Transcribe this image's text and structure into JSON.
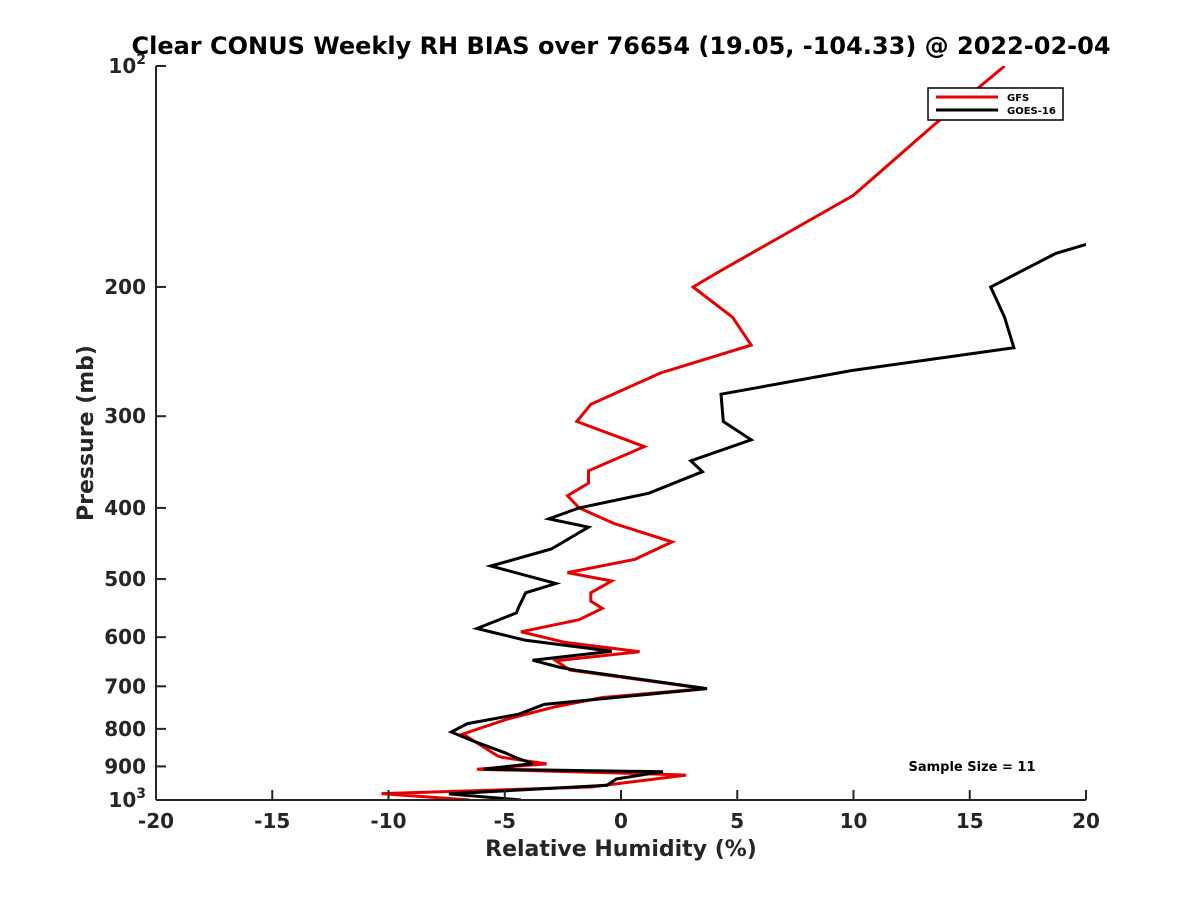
{
  "chart_data": {
    "type": "line",
    "title": "Clear CONUS Weekly RH BIAS over 76654 (19.05, -104.33) @ 2022-02-04",
    "xlabel": "Relative Humidity (%)",
    "ylabel": "Pressure (mb)",
    "xlim": [
      -20,
      20
    ],
    "ylim": [
      100,
      1000
    ],
    "y_scale": "log",
    "y_reversed": true,
    "grid": false,
    "legend_position": "top-right",
    "annotation": "Sample Size = 11",
    "x_ticks": [
      -20,
      -15,
      -10,
      -5,
      0,
      5,
      10,
      15,
      20
    ],
    "x_tick_labels": [
      "-20",
      "-15",
      "-10",
      "-5",
      "0",
      "5",
      "10",
      "15",
      "20"
    ],
    "y_ticks": [
      100,
      200,
      300,
      400,
      500,
      600,
      700,
      800,
      900,
      1000
    ],
    "y_tick_labels": [
      "10²",
      "200",
      "300",
      "400",
      "500",
      "600",
      "700",
      "800",
      "900",
      "10³"
    ],
    "series": [
      {
        "name": "GFS",
        "color": "#e60000",
        "points": [
          [
            16.5,
            100
          ],
          [
            13.5,
            120
          ],
          [
            10.0,
            150
          ],
          [
            4.3,
            190
          ],
          [
            3.1,
            200
          ],
          [
            4.8,
            220
          ],
          [
            5.6,
            240
          ],
          [
            1.7,
            262
          ],
          [
            -1.3,
            289
          ],
          [
            -1.9,
            305
          ],
          [
            1.0,
            330
          ],
          [
            -1.4,
            356
          ],
          [
            -1.4,
            370
          ],
          [
            -2.3,
            385
          ],
          [
            -1.8,
            400
          ],
          [
            -0.3,
            420
          ],
          [
            2.2,
            445
          ],
          [
            0.6,
            470
          ],
          [
            -2.3,
            490
          ],
          [
            -0.4,
            503
          ],
          [
            -1.3,
            522
          ],
          [
            -1.3,
            536
          ],
          [
            -0.8,
            548
          ],
          [
            -1.8,
            568
          ],
          [
            -4.3,
            590
          ],
          [
            -2.4,
            610
          ],
          [
            0.8,
            628
          ],
          [
            -2.8,
            646
          ],
          [
            -2.2,
            665
          ],
          [
            3.6,
            705
          ],
          [
            -0.8,
            725
          ],
          [
            -2.8,
            746
          ],
          [
            -4.9,
            776
          ],
          [
            -6.8,
            813
          ],
          [
            -5.3,
            871
          ],
          [
            -5.1,
            875
          ],
          [
            -3.2,
            893
          ],
          [
            -6.2,
            908
          ],
          [
            1.6,
            922
          ],
          [
            2.8,
            925
          ],
          [
            -1.3,
            960
          ],
          [
            -10.3,
            980
          ],
          [
            -6.5,
            1000
          ]
        ]
      },
      {
        "name": "GOES-16",
        "color": "#000000",
        "points": [
          [
            20.0,
            175
          ],
          [
            18.7,
            180
          ],
          [
            15.9,
            200
          ],
          [
            16.5,
            220
          ],
          [
            16.9,
            242
          ],
          [
            9.9,
            260
          ],
          [
            4.3,
            280
          ],
          [
            4.4,
            305
          ],
          [
            5.6,
            323
          ],
          [
            3.0,
            345
          ],
          [
            3.5,
            357
          ],
          [
            1.2,
            382
          ],
          [
            -1.8,
            400
          ],
          [
            -3.1,
            414
          ],
          [
            -1.4,
            425
          ],
          [
            -3.0,
            455
          ],
          [
            -5.6,
            480
          ],
          [
            -2.8,
            507
          ],
          [
            -4.1,
            522
          ],
          [
            -4.4,
            546
          ],
          [
            -4.5,
            556
          ],
          [
            -6.2,
            584
          ],
          [
            -4.1,
            606
          ],
          [
            -0.4,
            627
          ],
          [
            -3.8,
            645
          ],
          [
            -2.6,
            660
          ],
          [
            -2.0,
            665
          ],
          [
            3.7,
            705
          ],
          [
            -3.3,
            741
          ],
          [
            -4.4,
            764
          ],
          [
            -6.6,
            787
          ],
          [
            -7.3,
            808
          ],
          [
            -6.4,
            830
          ],
          [
            -5.0,
            862
          ],
          [
            -4.5,
            876
          ],
          [
            -3.8,
            892
          ],
          [
            -5.9,
            908
          ],
          [
            1.8,
            915
          ],
          [
            -0.2,
            936
          ],
          [
            -0.6,
            955
          ],
          [
            -7.4,
            981
          ],
          [
            -4.3,
            1000
          ]
        ]
      }
    ]
  }
}
